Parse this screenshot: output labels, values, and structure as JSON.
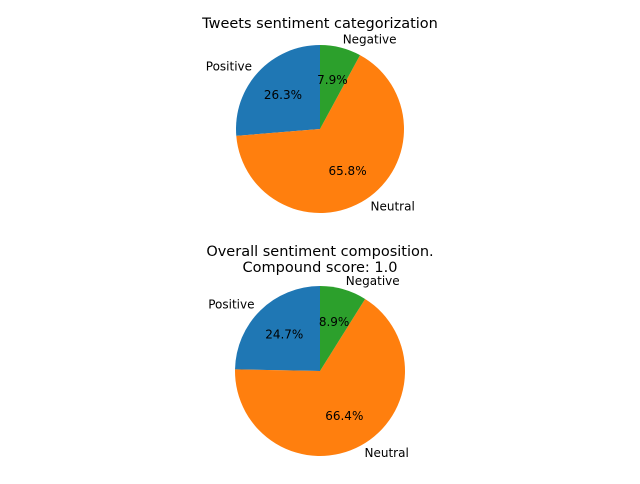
{
  "chart_data": [
    {
      "type": "pie",
      "title_lines": [
        "Tweets sentiment categorization"
      ],
      "categories": [
        "Positive",
        "Neutral",
        "Negative"
      ],
      "values": [
        26.3,
        65.8,
        7.9
      ],
      "value_labels": [
        "26.3%",
        "65.8%",
        "7.9%"
      ],
      "colors": [
        "#1f77b4",
        "#ff7f0e",
        "#2ca02c"
      ],
      "start_angle_deg": 90,
      "direction": "counterclockwise",
      "legend": "none"
    },
    {
      "type": "pie",
      "title_lines": [
        "Overall sentiment composition.",
        "Compound score: 1.0"
      ],
      "categories": [
        "Positive",
        "Neutral",
        "Negative"
      ],
      "values": [
        24.7,
        66.4,
        8.9
      ],
      "value_labels": [
        "24.7%",
        "66.4%",
        "8.9%"
      ],
      "colors": [
        "#1f77b4",
        "#ff7f0e",
        "#2ca02c"
      ],
      "start_angle_deg": 90,
      "direction": "counterclockwise",
      "legend": "none"
    }
  ]
}
